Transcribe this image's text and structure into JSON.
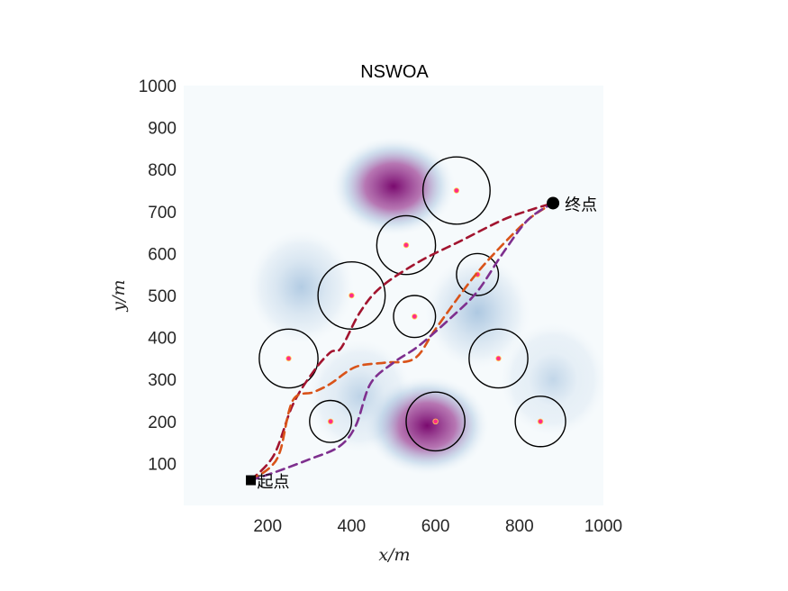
{
  "chart_data": {
    "type": "path-planning-map",
    "title": "NSWOA",
    "xlabel": "x/m",
    "ylabel": "y/m",
    "xlim": [
      0,
      1000
    ],
    "ylim": [
      0,
      1000
    ],
    "xticks": [
      200,
      400,
      600,
      800,
      1000
    ],
    "yticks": [
      100,
      200,
      300,
      400,
      500,
      600,
      700,
      800,
      900,
      1000
    ],
    "terrain_peaks": [
      {
        "x": 500,
        "y": 760,
        "height": 1.0
      },
      {
        "x": 580,
        "y": 190,
        "height": 0.8
      },
      {
        "x": 280,
        "y": 520,
        "height": 0.35
      },
      {
        "x": 700,
        "y": 460,
        "height": 0.4
      },
      {
        "x": 420,
        "y": 260,
        "height": 0.25
      },
      {
        "x": 880,
        "y": 300,
        "height": 0.2
      }
    ],
    "obstacles": [
      {
        "x": 650,
        "y": 750,
        "r": 80
      },
      {
        "x": 530,
        "y": 620,
        "r": 70
      },
      {
        "x": 400,
        "y": 500,
        "r": 80
      },
      {
        "x": 700,
        "y": 550,
        "r": 50
      },
      {
        "x": 550,
        "y": 450,
        "r": 50
      },
      {
        "x": 250,
        "y": 350,
        "r": 70
      },
      {
        "x": 750,
        "y": 350,
        "r": 70
      },
      {
        "x": 350,
        "y": 200,
        "r": 50
      },
      {
        "x": 600,
        "y": 200,
        "r": 70
      },
      {
        "x": 850,
        "y": 200,
        "r": 60
      }
    ],
    "start": {
      "x": 160,
      "y": 60,
      "label": "起点"
    },
    "end": {
      "x": 880,
      "y": 720,
      "label": "终点"
    },
    "paths": [
      {
        "color": "#a2142f",
        "points": [
          [
            160,
            60
          ],
          [
            215,
            120
          ],
          [
            260,
            240
          ],
          [
            310,
            320
          ],
          [
            350,
            365
          ],
          [
            375,
            375
          ],
          [
            420,
            460
          ],
          [
            470,
            520
          ],
          [
            560,
            580
          ],
          [
            660,
            630
          ],
          [
            760,
            680
          ],
          [
            830,
            705
          ],
          [
            880,
            720
          ]
        ]
      },
      {
        "color": "#d95319",
        "points": [
          [
            160,
            60
          ],
          [
            205,
            90
          ],
          [
            230,
            130
          ],
          [
            260,
            250
          ],
          [
            310,
            270
          ],
          [
            350,
            290
          ],
          [
            410,
            330
          ],
          [
            480,
            340
          ],
          [
            550,
            350
          ],
          [
            600,
            420
          ],
          [
            680,
            530
          ],
          [
            740,
            600
          ],
          [
            820,
            680
          ],
          [
            880,
            720
          ]
        ]
      },
      {
        "color": "#7e2f8e",
        "points": [
          [
            160,
            60
          ],
          [
            220,
            80
          ],
          [
            300,
            110
          ],
          [
            370,
            140
          ],
          [
            410,
            190
          ],
          [
            445,
            290
          ],
          [
            500,
            340
          ],
          [
            560,
            380
          ],
          [
            640,
            450
          ],
          [
            700,
            510
          ],
          [
            760,
            600
          ],
          [
            820,
            680
          ],
          [
            880,
            720
          ]
        ]
      }
    ],
    "colors": {
      "terrain_low": "#f6fafc",
      "terrain_mid": "#8fb3d6",
      "terrain_high": "#7a0a6f",
      "obstacle_edge": "#000000",
      "obstacle_center": "#ff2b8a",
      "marker": "#000000"
    }
  }
}
